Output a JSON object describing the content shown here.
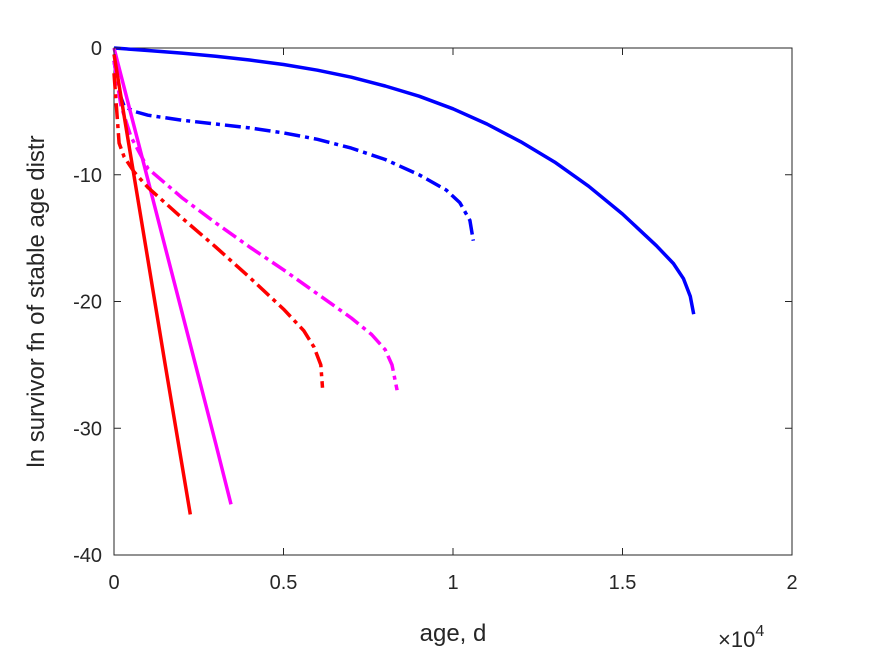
{
  "chart_data": {
    "type": "line",
    "title": "",
    "xlabel": "age, d",
    "ylabel": "ln survivor fn of stable age distr",
    "x_exponent_label": {
      "base": "×10",
      "exponent": "4"
    },
    "xlim": [
      0,
      20000
    ],
    "ylim": [
      -40,
      0
    ],
    "x_ticks": [
      0,
      5000,
      10000,
      15000,
      20000
    ],
    "x_tick_labels": [
      "0",
      "0.5",
      "1",
      "1.5",
      "2"
    ],
    "y_ticks": [
      0,
      -10,
      -20,
      -30,
      -40
    ],
    "y_tick_labels": [
      "0",
      "-10",
      "-20",
      "-30",
      "-40"
    ],
    "grid": false,
    "legend": "none",
    "series": [
      {
        "color": "#0000ff",
        "style": "solid",
        "x": [
          0,
          1000,
          2000,
          3000,
          4000,
          5000,
          6000,
          7000,
          8000,
          9000,
          10000,
          11000,
          12000,
          13000,
          14000,
          15000,
          16000,
          16500,
          16800,
          17000,
          17100
        ],
        "y": [
          0,
          -0.2,
          -0.4,
          -0.65,
          -0.95,
          -1.3,
          -1.75,
          -2.3,
          -3.0,
          -3.8,
          -4.8,
          -6.0,
          -7.4,
          -9.0,
          -10.9,
          -13.1,
          -15.6,
          -17.0,
          -18.2,
          -19.6,
          -21.0
        ]
      },
      {
        "color": "#0000ff",
        "style": "dashdot",
        "x": [
          0,
          150,
          300,
          600,
          1000,
          2000,
          3000,
          4000,
          5000,
          6000,
          7000,
          8000,
          9000,
          9800,
          10200,
          10500,
          10600
        ],
        "y": [
          -1,
          -3.5,
          -4.6,
          -5.0,
          -5.3,
          -5.7,
          -6.0,
          -6.3,
          -6.7,
          -7.2,
          -7.9,
          -8.8,
          -10.0,
          -11.2,
          -12.2,
          -13.6,
          -15.2
        ]
      },
      {
        "color": "#ff00ff",
        "style": "solid",
        "x": [
          0,
          500,
          1000,
          1500,
          2000,
          2500,
          3000,
          3450
        ],
        "y": [
          0,
          -5.2,
          -10.4,
          -15.6,
          -20.8,
          -26.0,
          -31.2,
          -36.0
        ]
      },
      {
        "color": "#ff00ff",
        "style": "dashdot",
        "x": [
          0,
          200,
          500,
          1000,
          2000,
          3000,
          4000,
          5000,
          6000,
          7000,
          7600,
          8000,
          8200,
          8350
        ],
        "y": [
          -1,
          -4.5,
          -7.0,
          -9.5,
          -11.8,
          -13.8,
          -15.7,
          -17.5,
          -19.4,
          -21.3,
          -22.6,
          -23.8,
          -25.0,
          -27.0
        ]
      },
      {
        "color": "#ff0000",
        "style": "solid",
        "x": [
          0,
          500,
          1000,
          1500,
          2000,
          2250
        ],
        "y": [
          -0.5,
          -8.6,
          -16.7,
          -24.8,
          -32.8,
          -36.8
        ]
      },
      {
        "color": "#ff0000",
        "style": "dashdot",
        "x": [
          0,
          150,
          300,
          600,
          1000,
          2000,
          3000,
          4000,
          5000,
          5600,
          5900,
          6100,
          6150
        ],
        "y": [
          -2.0,
          -7.5,
          -8.6,
          -9.8,
          -11.0,
          -13.4,
          -15.7,
          -18.1,
          -20.6,
          -22.3,
          -23.6,
          -25.0,
          -26.8
        ]
      }
    ]
  }
}
